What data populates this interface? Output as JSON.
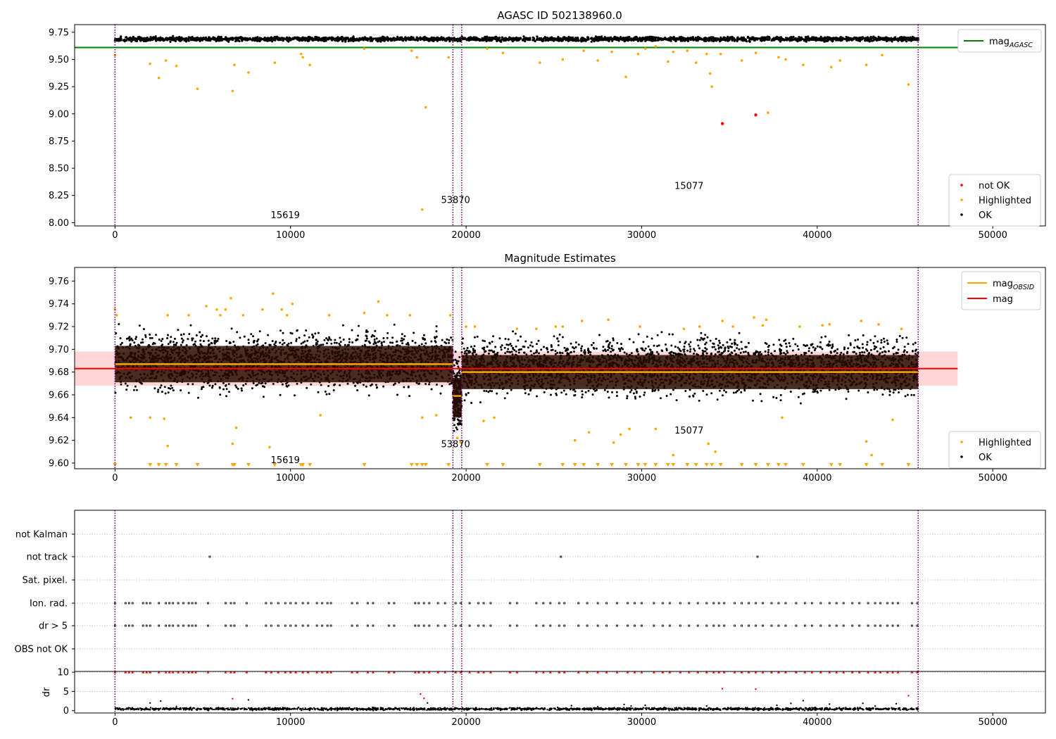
{
  "figure": {
    "suptitle": "AGASC ID 502138960.0"
  },
  "colors": {
    "ok": "#000000",
    "highlighted": "#ffa500",
    "not_ok": "#ff0000",
    "mag_agasc_line": "#008000",
    "mag_obsid_line": "#ffa500",
    "mag_line": "#ff0000",
    "mag_band": "#ffd6d6",
    "obsid_band": "#2a0d00",
    "vline": "#800080",
    "grid": "#b0b0b0"
  },
  "chart_data": [
    {
      "type": "scatter",
      "panel": "top",
      "title": "",
      "xlabel": "",
      "ylabel": "",
      "xlim": [
        -2300,
        53000
      ],
      "ylim": [
        7.97,
        9.82
      ],
      "xticks": [
        0,
        10000,
        20000,
        30000,
        40000,
        50000
      ],
      "yticks": [
        8.0,
        8.25,
        8.5,
        8.75,
        9.0,
        9.25,
        9.5,
        9.75
      ],
      "ytick_labels": [
        "8.00",
        "8.25",
        "8.50",
        "8.75",
        "9.00",
        "9.25",
        "9.50",
        "9.75"
      ],
      "legend_placement": [
        "top-right",
        "bottom-right"
      ],
      "legend_lines": [
        {
          "label": "mag",
          "sub": "AGASC",
          "color": "#008000"
        }
      ],
      "legend_points": [
        {
          "label": "not OK",
          "color": "#ff0000"
        },
        {
          "label": "Highlighted",
          "color": "#ffa500"
        },
        {
          "label": "OK",
          "color": "#000000"
        }
      ],
      "obsid_boundaries": [
        0,
        19250,
        19750,
        45750
      ],
      "mag_agasc": 9.61,
      "mag_agasc_range": [
        -2300,
        48000
      ],
      "ok_band": [
        {
          "x0": 0,
          "x1": 45750,
          "y0": 9.64,
          "y1": 9.73
        }
      ],
      "highlighted_points": [
        [
          0,
          9.54
        ],
        [
          2000,
          9.46
        ],
        [
          2500,
          9.33
        ],
        [
          2900,
          9.49
        ],
        [
          3500,
          9.44
        ],
        [
          4700,
          9.23
        ],
        [
          6700,
          9.21
        ],
        [
          6800,
          9.45
        ],
        [
          7600,
          9.38
        ],
        [
          9100,
          9.47
        ],
        [
          10600,
          9.55
        ],
        [
          10700,
          9.52
        ],
        [
          11100,
          9.45
        ],
        [
          14200,
          9.6
        ],
        [
          16900,
          9.58
        ],
        [
          17200,
          9.52
        ],
        [
          17500,
          8.12
        ],
        [
          17700,
          9.06
        ],
        [
          19000,
          9.52
        ],
        [
          21200,
          9.6
        ],
        [
          22100,
          9.56
        ],
        [
          24200,
          9.47
        ],
        [
          25500,
          9.5
        ],
        [
          26700,
          9.58
        ],
        [
          27500,
          9.49
        ],
        [
          28300,
          9.57
        ],
        [
          29100,
          9.34
        ],
        [
          29800,
          9.55
        ],
        [
          30200,
          9.6
        ],
        [
          30800,
          9.62
        ],
        [
          31500,
          9.48
        ],
        [
          31800,
          9.57
        ],
        [
          32600,
          9.58
        ],
        [
          33100,
          9.47
        ],
        [
          33700,
          9.55
        ],
        [
          33900,
          9.37
        ],
        [
          34000,
          9.25
        ],
        [
          34500,
          9.55
        ],
        [
          35700,
          9.49
        ],
        [
          36500,
          9.56
        ],
        [
          37200,
          9.01
        ],
        [
          37800,
          9.52
        ],
        [
          38200,
          9.5
        ],
        [
          39200,
          9.45
        ],
        [
          40800,
          9.43
        ],
        [
          41300,
          9.49
        ],
        [
          42800,
          9.45
        ],
        [
          43700,
          9.54
        ],
        [
          45200,
          9.27
        ]
      ],
      "not_ok_points": [
        [
          34600,
          8.91
        ],
        [
          36500,
          8.99
        ]
      ],
      "annotations": [
        {
          "text": "15619",
          "x": 9700,
          "y": 8.04
        },
        {
          "text": "53870",
          "x": 19400,
          "y": 8.18
        },
        {
          "text": "15077",
          "x": 32700,
          "y": 8.31
        }
      ]
    },
    {
      "type": "scatter",
      "panel": "middle",
      "title": "Magnitude Estimates",
      "xlabel": "",
      "ylabel": "",
      "xlim": [
        -2300,
        53000
      ],
      "ylim": [
        9.595,
        9.772
      ],
      "xticks": [
        0,
        10000,
        20000,
        30000,
        40000,
        50000
      ],
      "yticks": [
        9.6,
        9.62,
        9.64,
        9.66,
        9.68,
        9.7,
        9.72,
        9.74,
        9.76
      ],
      "ytick_labels": [
        "9.60",
        "9.62",
        "9.64",
        "9.66",
        "9.68",
        "9.70",
        "9.72",
        "9.74",
        "9.76"
      ],
      "legend_placement": [
        "top-right",
        "bottom-right"
      ],
      "legend_lines": [
        {
          "label": "mag",
          "sub": "OBSID",
          "color": "#ffa500"
        },
        {
          "label": "mag",
          "sub": "",
          "color": "#ff0000"
        }
      ],
      "legend_points": [
        {
          "label": "Highlighted",
          "color": "#ffa500"
        },
        {
          "label": "OK",
          "color": "#000000"
        }
      ],
      "obsid_boundaries": [
        0,
        19250,
        19750,
        45750
      ],
      "mag": 9.683,
      "mag_band": [
        9.668,
        9.698
      ],
      "mag_range": [
        -2300,
        48000
      ],
      "obsid_segments": [
        {
          "x0": 0,
          "x1": 19250,
          "mag": 9.687,
          "lo": 9.671,
          "hi": 9.703,
          "spread_lo": 9.655,
          "spread_hi": 9.725
        },
        {
          "x0": 19250,
          "x1": 19750,
          "mag": 9.659,
          "lo": 9.64,
          "hi": 9.675,
          "spread_lo": 9.62,
          "spread_hi": 9.7
        },
        {
          "x0": 19750,
          "x1": 45750,
          "mag": 9.68,
          "lo": 9.665,
          "hi": 9.695,
          "spread_lo": 9.65,
          "spread_hi": 9.718
        }
      ],
      "highlighted_points": [
        [
          0,
          9.735
        ],
        [
          100,
          9.73
        ],
        [
          900,
          9.64
        ],
        [
          2000,
          9.64
        ],
        [
          2800,
          9.639
        ],
        [
          3000,
          9.615
        ],
        [
          3000,
          9.73
        ],
        [
          4200,
          9.73
        ],
        [
          5200,
          9.738
        ],
        [
          5800,
          9.735
        ],
        [
          6000,
          9.73
        ],
        [
          6300,
          9.735
        ],
        [
          6600,
          9.745
        ],
        [
          6700,
          9.617
        ],
        [
          6900,
          9.631
        ],
        [
          7300,
          9.73
        ],
        [
          8400,
          9.735
        ],
        [
          8800,
          9.614
        ],
        [
          9000,
          9.749
        ],
        [
          9500,
          9.735
        ],
        [
          9800,
          9.73
        ],
        [
          10100,
          9.74
        ],
        [
          11700,
          9.642
        ],
        [
          12200,
          9.73
        ],
        [
          14200,
          9.732
        ],
        [
          15000,
          9.742
        ],
        [
          15500,
          9.73
        ],
        [
          16800,
          9.73
        ],
        [
          17500,
          9.64
        ],
        [
          18300,
          9.642
        ],
        [
          19100,
          9.73
        ],
        [
          19500,
          9.622
        ],
        [
          19700,
          9.618
        ],
        [
          20000,
          9.72
        ],
        [
          20500,
          9.72
        ],
        [
          21000,
          9.637
        ],
        [
          21600,
          9.64
        ],
        [
          22900,
          9.718
        ],
        [
          24000,
          9.718
        ],
        [
          25100,
          9.72
        ],
        [
          25500,
          9.72
        ],
        [
          26200,
          9.62
        ],
        [
          26600,
          9.725
        ],
        [
          27000,
          9.627
        ],
        [
          28100,
          9.726
        ],
        [
          28400,
          9.618
        ],
        [
          28800,
          9.625
        ],
        [
          29300,
          9.63
        ],
        [
          29900,
          9.72
        ],
        [
          30800,
          9.63
        ],
        [
          31800,
          9.607
        ],
        [
          32400,
          9.718
        ],
        [
          33300,
          9.72
        ],
        [
          33800,
          9.617
        ],
        [
          34200,
          9.61
        ],
        [
          34600,
          9.725
        ],
        [
          35200,
          9.72
        ],
        [
          36400,
          9.728
        ],
        [
          36900,
          9.721
        ],
        [
          37100,
          9.726
        ],
        [
          38000,
          9.64
        ],
        [
          39000,
          9.72
        ],
        [
          40300,
          9.721
        ],
        [
          40700,
          9.722
        ],
        [
          42500,
          9.725
        ],
        [
          42800,
          9.619
        ],
        [
          43100,
          9.607
        ],
        [
          43500,
          9.722
        ],
        [
          44300,
          9.638
        ],
        [
          44800,
          9.718
        ]
      ],
      "clipped_points_x": [
        0,
        2000,
        2500,
        2900,
        3500,
        4700,
        6700,
        6800,
        7600,
        9100,
        10600,
        10700,
        11100,
        14200,
        16900,
        17200,
        17500,
        17700,
        19000,
        21200,
        22100,
        24200,
        25500,
        26200,
        26700,
        27500,
        28300,
        29100,
        29800,
        30200,
        30800,
        31500,
        31800,
        32600,
        33100,
        33700,
        34000,
        34500,
        35700,
        36500,
        37200,
        37800,
        38200,
        39200,
        40800,
        41300,
        42800,
        43700,
        45200
      ],
      "annotations": [
        {
          "text": "15619",
          "x": 9700,
          "y": 9.6
        },
        {
          "text": "53870",
          "x": 19400,
          "y": 9.614
        },
        {
          "text": "15077",
          "x": 32700,
          "y": 9.626
        }
      ]
    },
    {
      "type": "scatter",
      "panel": "flags",
      "title": "",
      "xlabel": "",
      "ylabel": "",
      "xlim": [
        -2300,
        53000
      ],
      "categories": [
        "not Kalman",
        "not track",
        "Sat. pixel.",
        "Ion. rad.",
        "dr > 5",
        "OBS not OK"
      ],
      "obsid_boundaries": [
        0,
        19250,
        19750,
        45750
      ],
      "flag_points": {
        "not track": [
          5400,
          25400,
          36600
        ],
        "Ion. rad.": [
          0,
          600,
          800,
          1000,
          1600,
          1800,
          2000,
          2500,
          2900,
          3100,
          3300,
          3600,
          3900,
          4200,
          4400,
          4600,
          5300,
          6300,
          6600,
          6800,
          7500,
          8600,
          8900,
          9300,
          9700,
          10000,
          10300,
          10700,
          11000,
          11500,
          11800,
          12100,
          12300,
          13500,
          13800,
          14400,
          14700,
          15600,
          15900,
          17100,
          17300,
          17600,
          17900,
          18400,
          18800,
          19400,
          19700,
          20200,
          20700,
          21000,
          21400,
          22500,
          22900,
          24000,
          24400,
          24800,
          25300,
          25600,
          26400,
          26900,
          27500,
          28000,
          28600,
          29200,
          29600,
          30000,
          30700,
          31200,
          31600,
          32200,
          32700,
          33200,
          33700,
          34100,
          34400,
          34700,
          35300,
          35700,
          36100,
          36500,
          36900,
          37400,
          37800,
          38200,
          38800,
          39300,
          39700,
          40200,
          40700,
          41100,
          41500,
          42000,
          42400,
          42900,
          43300,
          43600,
          44000,
          44300,
          44600,
          45400,
          45700
        ],
        "dr > 5": [
          0,
          600,
          800,
          1000,
          1600,
          1800,
          2000,
          2500,
          2900,
          3100,
          3300,
          3600,
          3900,
          4200,
          4400,
          4600,
          5300,
          6300,
          6600,
          6800,
          7500,
          8600,
          8900,
          9300,
          9700,
          10000,
          10300,
          10700,
          11000,
          11500,
          11800,
          12100,
          12300,
          13500,
          13800,
          14400,
          14700,
          15600,
          15900,
          17100,
          17300,
          17600,
          17900,
          18400,
          18800,
          19400,
          19700,
          20200,
          20700,
          21000,
          21400,
          22500,
          22900,
          24000,
          24400,
          24800,
          25300,
          25600,
          26400,
          26900,
          27500,
          28000,
          28600,
          29200,
          29600,
          30000,
          30700,
          31200,
          31600,
          32200,
          32700,
          33200,
          33700,
          34100,
          34400,
          34700,
          35300,
          35700,
          36100,
          36500,
          36900,
          37400,
          37800,
          38200,
          38800,
          39300,
          39700,
          40200,
          40700,
          41100,
          41500,
          42000,
          42400,
          42900,
          43300,
          43600,
          44000,
          44300,
          44600,
          45400,
          45700
        ]
      }
    },
    {
      "type": "scatter",
      "panel": "dr",
      "title": "",
      "xlabel": "",
      "ylabel": "dr",
      "xlim": [
        -2300,
        53000
      ],
      "ylim": [
        -0.6,
        10.2
      ],
      "xticks": [
        0,
        10000,
        20000,
        30000,
        40000,
        50000
      ],
      "yticks": [
        0,
        5,
        10
      ],
      "obsid_boundaries": [
        0,
        19250,
        19750,
        45750
      ],
      "clip_value": 10,
      "clipped_x": [
        0,
        600,
        800,
        1000,
        1600,
        1800,
        2000,
        2500,
        2900,
        3100,
        3300,
        3600,
        3900,
        4200,
        4400,
        4600,
        5300,
        6300,
        6600,
        6800,
        7500,
        8600,
        8900,
        9300,
        9700,
        10000,
        10300,
        10700,
        11000,
        11500,
        11800,
        12100,
        12300,
        13500,
        13800,
        14400,
        14700,
        15600,
        15900,
        17100,
        17300,
        17600,
        17900,
        18400,
        18800,
        19400,
        19700,
        20200,
        20700,
        21000,
        21400,
        22500,
        22900,
        24000,
        24400,
        24800,
        25300,
        25600,
        26400,
        26900,
        27500,
        28000,
        28600,
        29200,
        29600,
        30000,
        30700,
        31200,
        31600,
        32200,
        32700,
        33200,
        33700,
        34100,
        34400,
        34700,
        35300,
        35700,
        36100,
        36500,
        36900,
        37400,
        37800,
        38200,
        38800,
        39300,
        39700,
        40200,
        40700,
        41100,
        41500,
        42000,
        42400,
        42900,
        43300,
        43600,
        44000,
        44300,
        44600,
        45400,
        45700
      ],
      "red_points": [
        [
          6700,
          3.1
        ],
        [
          17400,
          4.3
        ],
        [
          17600,
          3.2
        ],
        [
          34600,
          5.7
        ],
        [
          36500,
          5.6
        ],
        [
          45200,
          3.9
        ]
      ],
      "black_points": [
        [
          2000,
          2.0
        ],
        [
          2600,
          2.5
        ],
        [
          3500,
          1.1
        ],
        [
          7600,
          2.8
        ],
        [
          17800,
          2.0
        ],
        [
          26000,
          1.3
        ],
        [
          27500,
          1.0
        ],
        [
          29000,
          1.6
        ],
        [
          29400,
          1.2
        ],
        [
          30200,
          1.4
        ],
        [
          33700,
          1.2
        ],
        [
          37700,
          1.4
        ],
        [
          38500,
          1.9
        ],
        [
          39200,
          2.6
        ],
        [
          40700,
          1.7
        ],
        [
          42600,
          1.9
        ],
        [
          43300,
          1.2
        ],
        [
          44500,
          1.8
        ]
      ]
    }
  ]
}
